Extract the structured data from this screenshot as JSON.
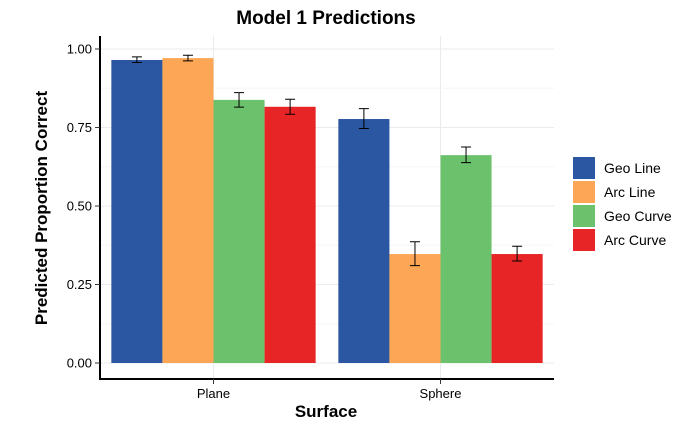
{
  "chart_data": {
    "type": "bar",
    "title": "Model 1 Predictions",
    "xlabel": "Surface",
    "ylabel": "Predicted Proportion Correct",
    "categories": [
      "Plane",
      "Sphere"
    ],
    "ylim": [
      0,
      1
    ],
    "yticks": [
      "0.00",
      "0.25",
      "0.50",
      "0.75",
      "1.00"
    ],
    "grid": true,
    "legend_position": "right",
    "series": [
      {
        "name": "Geo Line",
        "color": "#2b56a1",
        "values": [
          0.965,
          0.777
        ],
        "err_low": [
          0.957,
          0.747
        ],
        "err_high": [
          0.975,
          0.81
        ]
      },
      {
        "name": "Arc Line",
        "color": "#fda655",
        "values": [
          0.971,
          0.347
        ],
        "err_low": [
          0.962,
          0.31
        ],
        "err_high": [
          0.98,
          0.386
        ]
      },
      {
        "name": "Geo Curve",
        "color": "#6cc16d",
        "values": [
          0.838,
          0.662
        ],
        "err_low": [
          0.815,
          0.638
        ],
        "err_high": [
          0.861,
          0.688
        ]
      },
      {
        "name": "Arc Curve",
        "color": "#e82526",
        "values": [
          0.816,
          0.347
        ],
        "err_low": [
          0.792,
          0.325
        ],
        "err_high": [
          0.84,
          0.372
        ]
      }
    ]
  }
}
